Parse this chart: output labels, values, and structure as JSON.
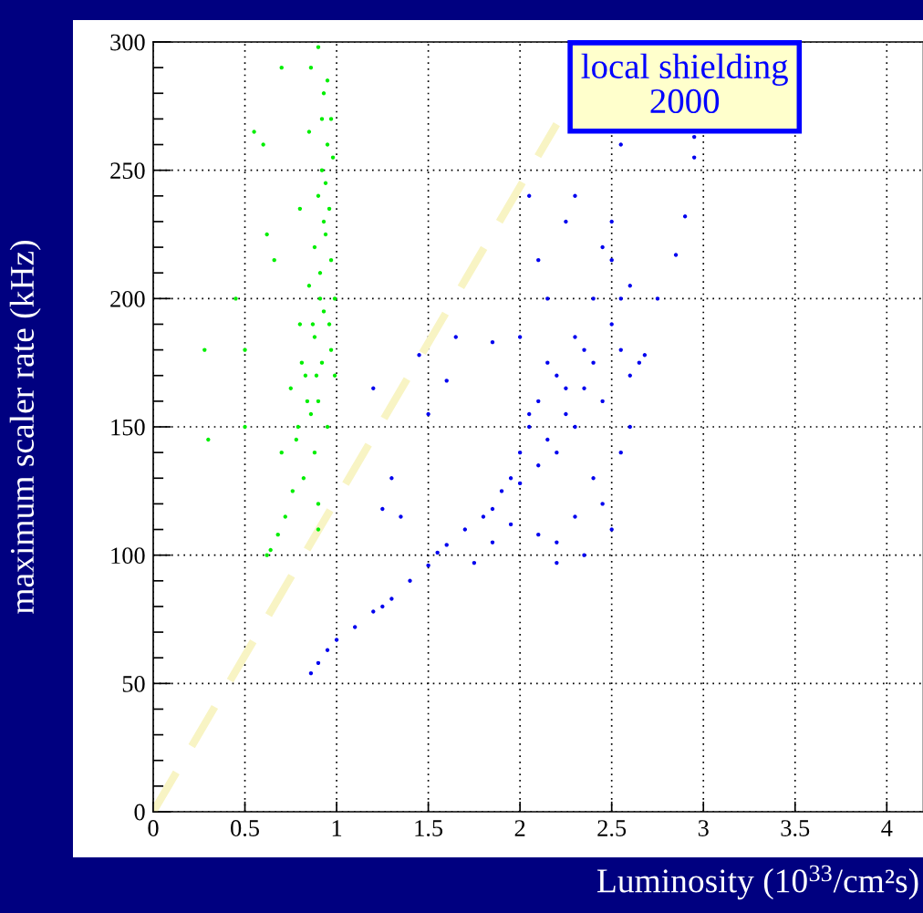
{
  "chart_data": {
    "type": "scatter",
    "xlabel": "Luminosity (10$^{33}$/cm²s)",
    "ylabel": "maximum scaler rate (kHz)",
    "annotations": [
      "local shielding\n2000"
    ],
    "xlim": [
      0,
      4.2
    ],
    "xticks": [
      0,
      0.5,
      1,
      1.5,
      2,
      2.5,
      3,
      3.5,
      4
    ],
    "ylim": [
      0,
      300
    ],
    "yticks": [
      0,
      {
        "value": 10,
        "label": null
      },
      {
        "value": 20,
        "label": null
      },
      {
        "value": 30,
        "label": null
      },
      {
        "value": 40,
        "label": null
      },
      50,
      {
        "value": 60,
        "label": null
      },
      {
        "value": 70,
        "label": null
      },
      {
        "value": 80,
        "label": null
      },
      {
        "value": 90,
        "label": null
      },
      100,
      {
        "value": 110,
        "label": null
      },
      {
        "value": 120,
        "label": null
      },
      {
        "value": 130,
        "label": null
      },
      {
        "value": 140,
        "label": null
      },
      150,
      {
        "value": 160,
        "label": null
      },
      {
        "value": 170,
        "label": null
      },
      {
        "value": 180,
        "label": null
      },
      {
        "value": 190,
        "label": null
      },
      200,
      {
        "value": 210,
        "label": null
      },
      {
        "value": 220,
        "label": null
      },
      {
        "value": 230,
        "label": null
      },
      {
        "value": 240,
        "label": null
      },
      250,
      {
        "value": 260,
        "label": null
      },
      {
        "value": 270,
        "label": null
      },
      {
        "value": 280,
        "label": null
      },
      {
        "value": 290,
        "label": null
      },
      300
    ],
    "grid": true,
    "marker": "circle",
    "series": [
      {
        "color": "#00ee00",
        "x": [
          0.9,
          0.86,
          0.7,
          0.93,
          0.95,
          0.97,
          0.95,
          0.92,
          0.98,
          0.9,
          0.96,
          0.94,
          0.88,
          0.97,
          0.91,
          0.85,
          0.99,
          0.93,
          0.8,
          0.88,
          0.97,
          0.92,
          0.83,
          0.75,
          0.99,
          0.9,
          0.86,
          0.95,
          0.78,
          0.7,
          0.88,
          0.82,
          0.76,
          0.72,
          0.68,
          0.64,
          0.62,
          0.9,
          0.9,
          0.5,
          0.3,
          0.55,
          0.6,
          0.45,
          0.5,
          0.92,
          0.8,
          0.85,
          0.94,
          0.28,
          0.62,
          0.66,
          0.87,
          0.91,
          0.89,
          0.84,
          0.93,
          0.96,
          0.81,
          0.79
        ],
        "values": [
          298,
          290,
          290,
          280,
          285,
          270,
          260,
          250,
          255,
          240,
          235,
          225,
          220,
          215,
          210,
          205,
          200,
          195,
          190,
          185,
          180,
          175,
          170,
          165,
          170,
          160,
          155,
          150,
          145,
          140,
          140,
          130,
          125,
          115,
          108,
          102,
          100,
          120,
          110,
          150,
          145,
          265,
          260,
          200,
          180,
          270,
          235,
          265,
          245,
          180,
          225,
          215,
          190,
          200,
          170,
          160,
          230,
          190,
          175,
          150
        ]
      },
      {
        "color": "#0000ee",
        "x": [
          0.86,
          0.9,
          0.95,
          1.0,
          1.1,
          1.2,
          1.25,
          1.3,
          1.4,
          1.5,
          1.55,
          1.6,
          1.7,
          1.8,
          1.85,
          1.9,
          1.95,
          2.0,
          2.0,
          2.05,
          2.1,
          2.1,
          2.15,
          2.2,
          2.2,
          2.25,
          2.3,
          2.3,
          2.35,
          2.4,
          2.4,
          2.45,
          2.5,
          2.5,
          2.55,
          2.6,
          2.65,
          2.68,
          2.55,
          2.45,
          2.6,
          1.75,
          1.85,
          2.1,
          2.2,
          2.3,
          2.45,
          2.5,
          2.35,
          2.2,
          1.95,
          2.0,
          2.1,
          2.3,
          2.5,
          2.55,
          2.9,
          2.95,
          2.95,
          2.75,
          2.85,
          1.45,
          1.6,
          1.5,
          1.2,
          1.25,
          1.3,
          1.35,
          1.65,
          2.15,
          2.25,
          2.05,
          1.85,
          2.6,
          2.4,
          2.55,
          2.25,
          2.35,
          2.15,
          2.05
        ],
        "values": [
          54,
          58,
          63,
          67,
          72,
          78,
          80,
          83,
          90,
          96,
          101,
          104,
          110,
          115,
          118,
          125,
          130,
          128,
          140,
          150,
          135,
          160,
          145,
          170,
          140,
          155,
          185,
          150,
          165,
          200,
          175,
          160,
          190,
          215,
          180,
          170,
          175,
          178,
          200,
          220,
          205,
          97,
          105,
          108,
          105,
          115,
          120,
          110,
          100,
          97,
          112,
          185,
          215,
          240,
          230,
          260,
          232,
          255,
          263,
          200,
          217,
          178,
          168,
          155,
          165,
          118,
          130,
          115,
          185,
          200,
          230,
          240,
          183,
          150,
          130,
          140,
          165,
          180,
          175,
          155
        ]
      },
      {
        "type": "line",
        "color": "#f8f4c4",
        "line_style": "dashed",
        "marker": "none",
        "x": [
          0,
          2.2
        ],
        "values": [
          0,
          268
        ]
      }
    ]
  }
}
